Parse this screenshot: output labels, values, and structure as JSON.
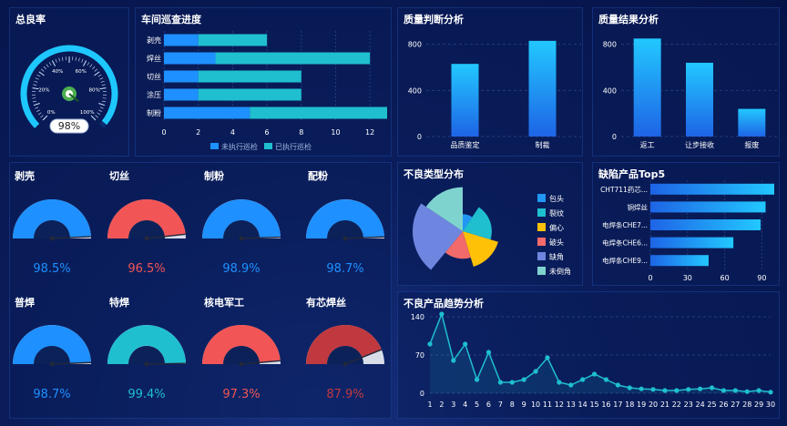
{
  "colors": {
    "blue": "#1e90ff",
    "cyan": "#1fbfd0",
    "red": "#f25555",
    "darkred": "#c0393f",
    "dark": "#0c2158",
    "light": "#d8dde8"
  },
  "chart_data": [
    {
      "id": "overall",
      "type": "gauge",
      "title": "总良率",
      "value": 98,
      "value_label": "98%",
      "ticks": [
        "0%",
        "20%",
        "40%",
        "60%",
        "80%",
        "100%"
      ]
    },
    {
      "id": "patrol",
      "type": "bar",
      "title": "车间巡查进度",
      "categories": [
        "剥壳",
        "焊丝",
        "切丝",
        "涂压",
        "制粉"
      ],
      "series": [
        {
          "name": "未执行巡检",
          "values": [
            2,
            3,
            2,
            2,
            5
          ]
        },
        {
          "name": "已执行巡检",
          "values": [
            4,
            9,
            6,
            6,
            8
          ]
        }
      ],
      "xlim": [
        0,
        13
      ],
      "xticks": [
        "0",
        "2",
        "4",
        "6",
        "8",
        "10",
        "12"
      ]
    },
    {
      "id": "judgement",
      "type": "bar",
      "title": "质量判断分析",
      "categories": [
        "品质鉴定",
        "制裁"
      ],
      "values": [
        630,
        830
      ],
      "ylim": [
        0,
        900
      ],
      "yticks": [
        "0",
        "400",
        "800"
      ]
    },
    {
      "id": "results",
      "type": "bar",
      "title": "质量结果分析",
      "categories": [
        "返工",
        "让步接收",
        "报废"
      ],
      "values": [
        850,
        640,
        240
      ],
      "ylim": [
        0,
        900
      ],
      "yticks": [
        "0",
        "400",
        "800"
      ]
    },
    {
      "id": "defect_type",
      "type": "pie",
      "title": "不良类型分布",
      "series": [
        {
          "name": "包头",
          "value": 0.6,
          "radius": 0.34
        },
        {
          "name": "裂纹",
          "value": 1.3,
          "radius": 0.58
        },
        {
          "name": "偏心",
          "value": 1.0,
          "radius": 0.74
        },
        {
          "name": "破头",
          "value": 1.0,
          "radius": 0.55
        },
        {
          "name": "缺角",
          "value": 1.5,
          "radius": 1.0
        },
        {
          "name": "未倒角",
          "value": 1.0,
          "radius": 0.88
        }
      ]
    },
    {
      "id": "top5",
      "type": "bar",
      "title": "缺陷产品Top5",
      "categories": [
        "CHT711药芯...",
        "铜焊丝",
        "电焊条CHE7...",
        "电焊条CHE6...",
        "电焊条CHE9..."
      ],
      "values": [
        100,
        93,
        89,
        67,
        47
      ],
      "xlim": [
        0,
        100
      ],
      "xticks": [
        "0",
        "30",
        "60",
        "90"
      ]
    },
    {
      "id": "trend",
      "type": "line",
      "title": "不良产品趋势分析",
      "x": [
        "1",
        "2",
        "3",
        "4",
        "5",
        "6",
        "7",
        "8",
        "9",
        "10",
        "11",
        "12",
        "13",
        "14",
        "15",
        "16",
        "17",
        "18",
        "19",
        "20",
        "21",
        "22",
        "23",
        "24",
        "25",
        "26",
        "27",
        "28",
        "29",
        "30"
      ],
      "values": [
        90,
        145,
        60,
        90,
        25,
        75,
        20,
        20,
        25,
        40,
        65,
        20,
        15,
        25,
        35,
        25,
        15,
        10,
        8,
        7,
        5,
        5,
        7,
        8,
        10,
        5,
        5,
        3,
        5,
        2
      ],
      "ylim": [
        0,
        160
      ],
      "yticks": [
        "0",
        "70",
        "140"
      ]
    },
    {
      "id": "process_gauges",
      "type": "gauge",
      "series": [
        {
          "name": "剥壳",
          "value": 98.5,
          "label": "98.5%",
          "color": "#1e90ff"
        },
        {
          "name": "切丝",
          "value": 96.5,
          "label": "96.5%",
          "color": "#f25555"
        },
        {
          "name": "制粉",
          "value": 98.9,
          "label": "98.9%",
          "color": "#1e90ff"
        },
        {
          "name": "配粉",
          "value": 98.7,
          "label": "98.7%",
          "color": "#1e90ff"
        },
        {
          "name": "普焊",
          "value": 98.7,
          "label": "98.7%",
          "color": "#1e90ff"
        },
        {
          "name": "特焊",
          "value": 99.4,
          "label": "99.4%",
          "color": "#1fbfd0"
        },
        {
          "name": "核电军工",
          "value": 97.3,
          "label": "97.3%",
          "color": "#f25555"
        },
        {
          "name": "有芯焊丝",
          "value": 87.9,
          "label": "87.9%",
          "color": "#c0393f"
        }
      ]
    }
  ]
}
